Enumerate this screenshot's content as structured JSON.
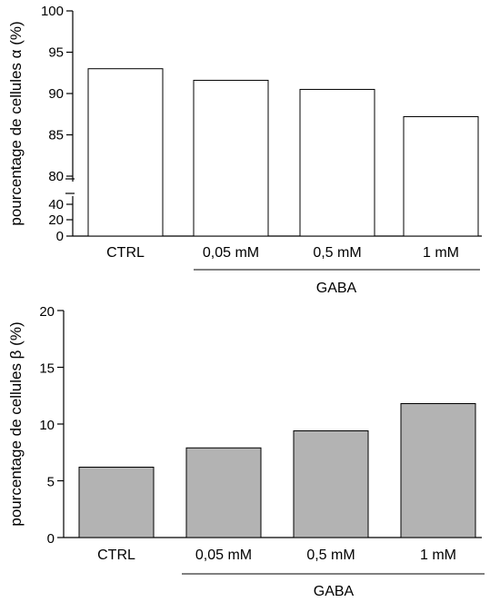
{
  "chart_data": [
    {
      "type": "bar",
      "categories": [
        "CTRL",
        "0,05 mM",
        "0,5 mM",
        "1 mM"
      ],
      "values": [
        93,
        91.6,
        90.5,
        87.2
      ],
      "ylabel": "pourcentage de cellules α (%)",
      "group_label": "GABA",
      "broken_axis": true,
      "yticks_lower": [
        0,
        20,
        40
      ],
      "yticks_upper": [
        80,
        85,
        90,
        95,
        100
      ],
      "ylim": [
        0,
        100
      ],
      "bar_color": "#ffffff",
      "grid": false
    },
    {
      "type": "bar",
      "categories": [
        "CTRL",
        "0,05 mM",
        "0,5 mM",
        "1 mM"
      ],
      "values": [
        6.2,
        7.9,
        9.4,
        11.8
      ],
      "ylabel": "pourcentage de cellules β (%)",
      "group_label": "GABA",
      "yticks": [
        0,
        5,
        10,
        15,
        20
      ],
      "ylim": [
        0,
        20
      ],
      "bar_color": "#b3b3b3",
      "grid": false
    }
  ]
}
